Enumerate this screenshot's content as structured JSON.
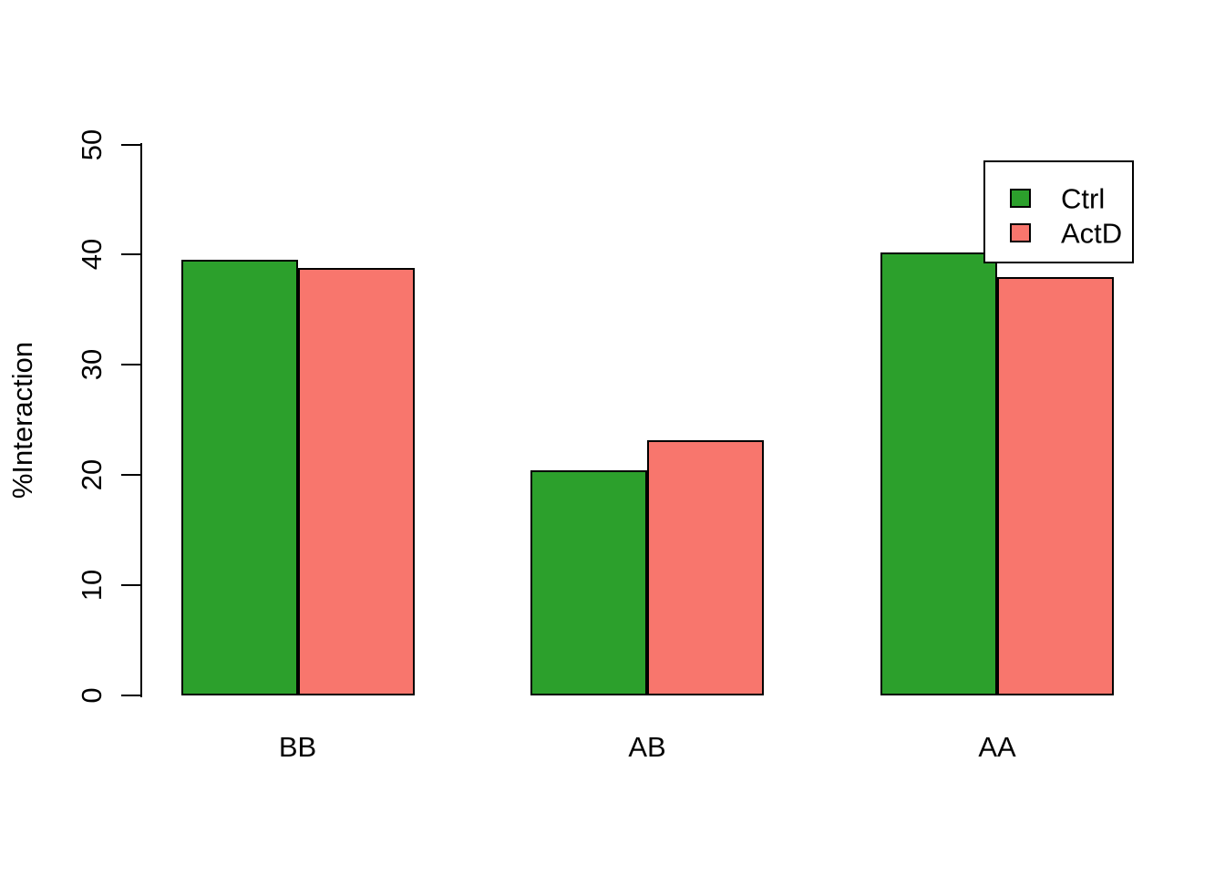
{
  "chart_data": {
    "type": "bar",
    "title": "",
    "xlabel": "",
    "ylabel": "%Interaction",
    "categories": [
      "BB",
      "AB",
      "AA"
    ],
    "series": [
      {
        "name": "Ctrl",
        "color": "#2CA02C",
        "values": [
          39.5,
          20.4,
          40.2
        ]
      },
      {
        "name": "ActD",
        "color": "#F8766D",
        "values": [
          38.8,
          23.2,
          38.0
        ]
      }
    ],
    "ylim": [
      0,
      50
    ],
    "yticks": [
      0,
      10,
      20,
      30,
      40,
      50
    ],
    "legend_position": "top-right",
    "grid": false,
    "bar_border_color": "#000000",
    "background_color": "#FFFFFF"
  }
}
